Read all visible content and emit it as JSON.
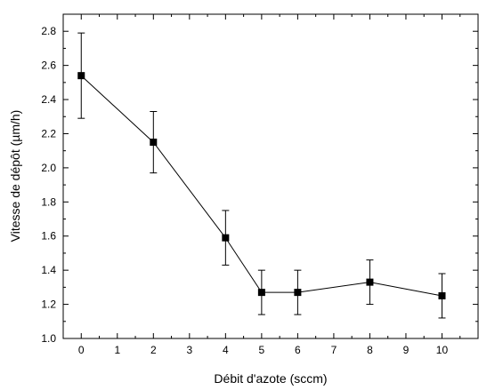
{
  "chart_data": {
    "type": "scatter",
    "title": "",
    "xlabel": "Débit d'azote (sccm)",
    "ylabel": "Vitesse de dépôt (µm/h)",
    "xlim": [
      -0.5,
      11
    ],
    "ylim": [
      1.0,
      2.9
    ],
    "xticks": [
      0,
      1,
      2,
      3,
      4,
      5,
      6,
      7,
      8,
      9,
      10
    ],
    "yticks": [
      1.0,
      1.2,
      1.4,
      1.6,
      1.8,
      2.0,
      2.2,
      2.4,
      2.6,
      2.8
    ],
    "xtick_labels": [
      "0",
      "1",
      "2",
      "3",
      "4",
      "5",
      "6",
      "7",
      "8",
      "9",
      "10"
    ],
    "ytick_labels": [
      "1.0",
      "1.2",
      "1.4",
      "1.6",
      "1.8",
      "2.0",
      "2.2",
      "2.4",
      "2.6",
      "2.8"
    ],
    "grid": false,
    "legend": "none",
    "series": [
      {
        "x": [
          0,
          2,
          4,
          5,
          6,
          8,
          10
        ],
        "y": [
          2.54,
          2.15,
          1.59,
          1.27,
          1.27,
          1.33,
          1.25
        ],
        "err_low": [
          2.29,
          1.97,
          1.43,
          1.14,
          1.14,
          1.2,
          1.12
        ],
        "err_high": [
          2.79,
          2.33,
          1.75,
          1.4,
          1.4,
          1.46,
          1.38
        ],
        "marker": "square",
        "line": true,
        "color": "#000000"
      }
    ]
  }
}
